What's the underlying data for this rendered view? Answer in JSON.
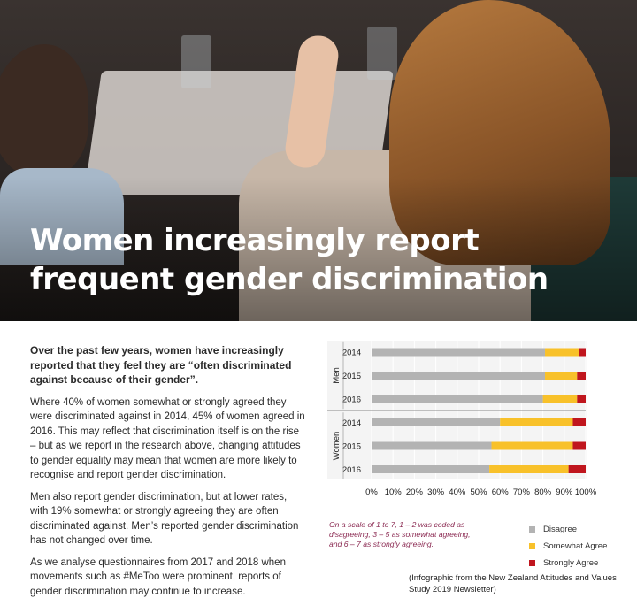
{
  "title": {
    "line1": "Women increasingly report",
    "line2": "frequent gender discrimination"
  },
  "body": {
    "lead": "Over the past few years, women have increasingly reported that they feel they are “often discriminated against because of their gender”.",
    "p1": "Where 40% of women somewhat or strongly agreed they were discriminated against in 2014, 45% of women agreed in 2016. This may reflect that discrimination itself is on the rise – but as we report in the research above, changing attitudes to gender equality may mean that women are more likely to recognise and report gender discrimination.",
    "p2": "Men also report gender discrimination, but at lower rates, with 19% somewhat or strongly agreeing they are often discriminated against. Men’s reported gender discrimination has not changed over time.",
    "p3": "As we analyse questionnaires from 2017 and 2018 when movements such as #MeToo were prominent, reports of gender discrimination may continue to increase."
  },
  "chart_data": {
    "type": "bar",
    "orientation": "horizontal",
    "stacked": true,
    "groups": [
      {
        "name": "Men",
        "categories": [
          "2014",
          "2015",
          "2016"
        ]
      },
      {
        "name": "Women",
        "categories": [
          "2014",
          "2015",
          "2016"
        ]
      }
    ],
    "series": [
      {
        "name": "Disagree",
        "color": "#b3b3b3",
        "values": [
          81,
          81,
          80,
          60,
          56,
          55
        ]
      },
      {
        "name": "Somewhat Agree",
        "color": "#f8c12a",
        "values": [
          16,
          15,
          16,
          34,
          38,
          37
        ]
      },
      {
        "name": "Strongly Agree",
        "color": "#c0161e",
        "values": [
          3,
          4,
          4,
          6,
          6,
          8
        ]
      }
    ],
    "xlim": [
      0,
      100
    ],
    "xticks": [
      "0%",
      "10%",
      "20%",
      "30%",
      "40%",
      "50%",
      "60%",
      "70%",
      "80%",
      "90%",
      "100%"
    ],
    "legend_position": "bottom-right"
  },
  "note": "On a scale of 1 to 7, 1 – 2 was coded as disagreeing, 3 – 5 as somewhat agreeing, and 6 – 7 as strongly agreeing.",
  "source": "(Infographic from the New Zealand Attitudes and Values Study 2019 Newsletter)"
}
